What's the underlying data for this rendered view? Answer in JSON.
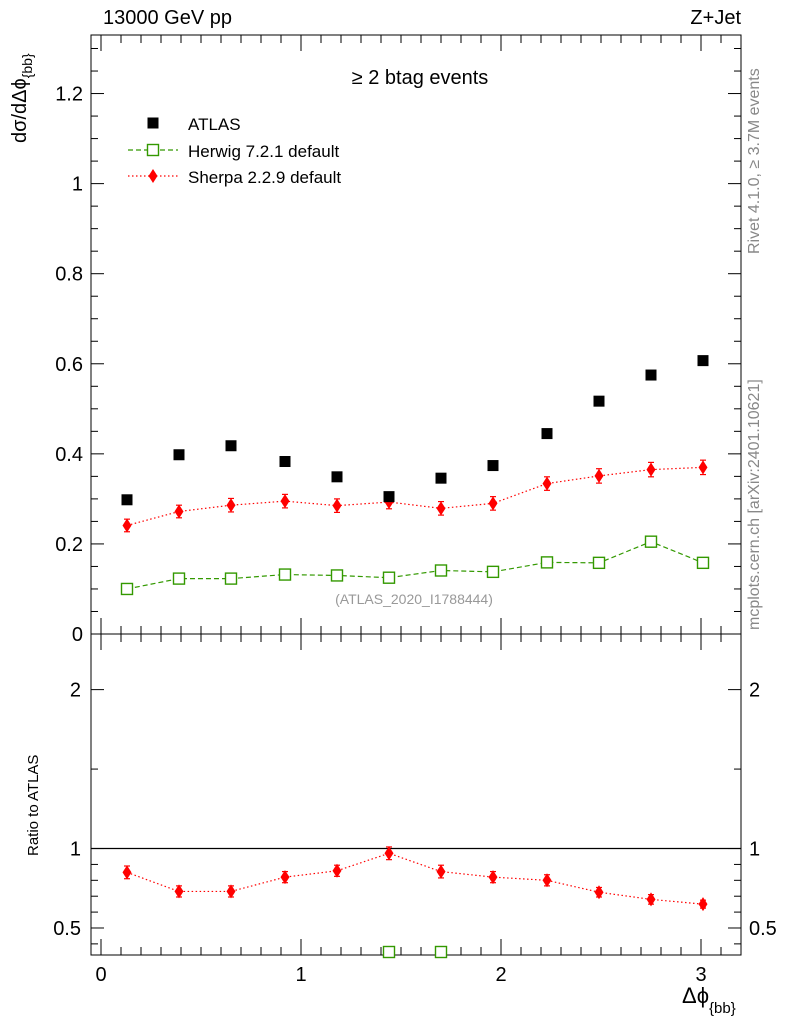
{
  "header": {
    "energy_label": "13000 GeV pp",
    "process_label": "Z+Jet"
  },
  "side_labels": {
    "rivet": "Rivet 4.1.0, ≥ 3.7M events",
    "mcplots": "mcplots.cern.ch [arXiv:2401.10621]"
  },
  "colors": {
    "atlas": "#000000",
    "herwig": "#339900",
    "sherpa": "#ff0000",
    "watermark": "#999999"
  },
  "chart_data": [
    {
      "type": "scatter",
      "panel": "main",
      "title": "≥ 2 btag events",
      "xlabel": "Δϕ",
      "xlabel_sub": "{bb}",
      "ylabel": "dσ/dΔϕ",
      "ylabel_sub": "{bb}",
      "xlim": [
        -0.05,
        3.2
      ],
      "ylim": [
        0,
        1.33
      ],
      "y_ticks": [
        0,
        0.2,
        0.4,
        0.6,
        0.8,
        1,
        1.2
      ],
      "y_tick_labels": [
        "0",
        "0.2",
        "0.4",
        "0.6",
        "0.8",
        "1",
        "1.2"
      ],
      "watermark": "(ATLAS_2020_I1788444)",
      "legend_position": "top-left",
      "x": [
        0.13,
        0.39,
        0.65,
        0.92,
        1.18,
        1.44,
        1.7,
        1.96,
        2.23,
        2.49,
        2.75,
        3.01
      ],
      "series": [
        {
          "name": "ATLAS",
          "marker": "filled-square",
          "values": [
            0.298,
            0.398,
            0.418,
            0.383,
            0.349,
            0.305,
            0.346,
            0.374,
            0.445,
            0.517,
            0.575,
            0.607
          ]
        },
        {
          "name": "Herwig 7.2.1 default",
          "marker": "open-square",
          "line": "dashed",
          "values": [
            0.1,
            0.123,
            0.123,
            0.132,
            0.13,
            0.125,
            0.141,
            0.138,
            0.159,
            0.158,
            0.205,
            0.158
          ],
          "errors": [
            0.005,
            0.005,
            0.005,
            0.005,
            0.005,
            0.005,
            0.006,
            0.006,
            0.007,
            0.007,
            0.012,
            0.009
          ]
        },
        {
          "name": "Sherpa 2.2.9 default",
          "marker": "filled-diamond",
          "line": "dotted",
          "values": [
            0.241,
            0.272,
            0.286,
            0.295,
            0.285,
            0.293,
            0.279,
            0.29,
            0.334,
            0.351,
            0.365,
            0.37
          ],
          "errors": [
            0.014,
            0.014,
            0.015,
            0.015,
            0.015,
            0.015,
            0.015,
            0.015,
            0.015,
            0.016,
            0.016,
            0.016
          ]
        }
      ]
    },
    {
      "type": "scatter",
      "panel": "ratio",
      "ylabel": "Ratio to ATLAS",
      "xlabel": "Δϕ",
      "xlabel_sub": "{bb}",
      "xlim": [
        -0.05,
        3.2
      ],
      "ylim": [
        0.33,
        2.35
      ],
      "y_ticks": [
        0.5,
        1,
        2
      ],
      "y_tick_labels": [
        "0.5",
        "1",
        "2"
      ],
      "x_ticks": [
        0,
        1,
        2,
        3
      ],
      "x_tick_labels": [
        "0",
        "1",
        "2",
        "3"
      ],
      "reference_line": 1,
      "x": [
        0.13,
        0.39,
        0.65,
        0.92,
        1.18,
        1.44,
        1.7,
        1.96,
        2.23,
        2.49,
        2.75,
        3.01
      ],
      "series": [
        {
          "name": "Sherpa 2.2.9 default",
          "values": [
            0.85,
            0.73,
            0.73,
            0.82,
            0.86,
            0.97,
            0.855,
            0.82,
            0.8,
            0.725,
            0.68,
            0.65
          ],
          "errors": [
            0.04,
            0.035,
            0.035,
            0.035,
            0.035,
            0.04,
            0.04,
            0.035,
            0.035,
            0.03,
            0.03,
            0.025
          ]
        },
        {
          "name": "Herwig 7.2.1 default",
          "note": "only points inside the visible range",
          "x": [
            1.44,
            1.7
          ],
          "values": [
            0.34,
            0.34
          ],
          "errors": [
            0.03,
            0.03
          ]
        }
      ]
    }
  ]
}
